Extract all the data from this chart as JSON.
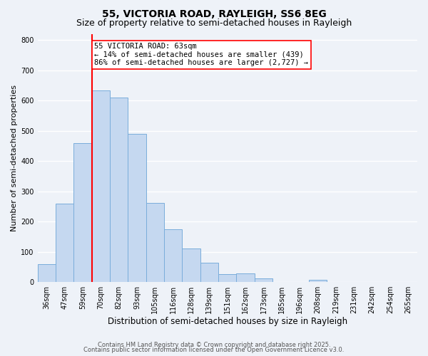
{
  "title": "55, VICTORIA ROAD, RAYLEIGH, SS6 8EG",
  "subtitle": "Size of property relative to semi-detached houses in Rayleigh",
  "xlabel": "Distribution of semi-detached houses by size in Rayleigh",
  "ylabel": "Number of semi-detached properties",
  "bin_labels": [
    "36sqm",
    "47sqm",
    "59sqm",
    "70sqm",
    "82sqm",
    "93sqm",
    "105sqm",
    "116sqm",
    "128sqm",
    "139sqm",
    "151sqm",
    "162sqm",
    "173sqm",
    "185sqm",
    "196sqm",
    "208sqm",
    "219sqm",
    "231sqm",
    "242sqm",
    "254sqm",
    "265sqm"
  ],
  "bar_heights": [
    60,
    258,
    458,
    632,
    610,
    490,
    262,
    175,
    110,
    63,
    27,
    28,
    11,
    0,
    0,
    7,
    0,
    0,
    0,
    0,
    0
  ],
  "bar_color": "#c5d8f0",
  "bar_edge_color": "#7aaddb",
  "vline_color": "red",
  "annotation_text": "55 VICTORIA ROAD: 63sqm\n← 14% of semi-detached houses are smaller (439)\n86% of semi-detached houses are larger (2,727) →",
  "annotation_box_color": "white",
  "annotation_box_edge_color": "red",
  "ylim": [
    0,
    820
  ],
  "yticks": [
    0,
    100,
    200,
    300,
    400,
    500,
    600,
    700,
    800
  ],
  "footnote1": "Contains HM Land Registry data © Crown copyright and database right 2025.",
  "footnote2": "Contains public sector information licensed under the Open Government Licence v3.0.",
  "background_color": "#eef2f8",
  "grid_color": "#ffffff",
  "title_fontsize": 10,
  "subtitle_fontsize": 9,
  "xlabel_fontsize": 8.5,
  "ylabel_fontsize": 8,
  "tick_fontsize": 7,
  "footnote_fontsize": 6,
  "annotation_fontsize": 7.5
}
